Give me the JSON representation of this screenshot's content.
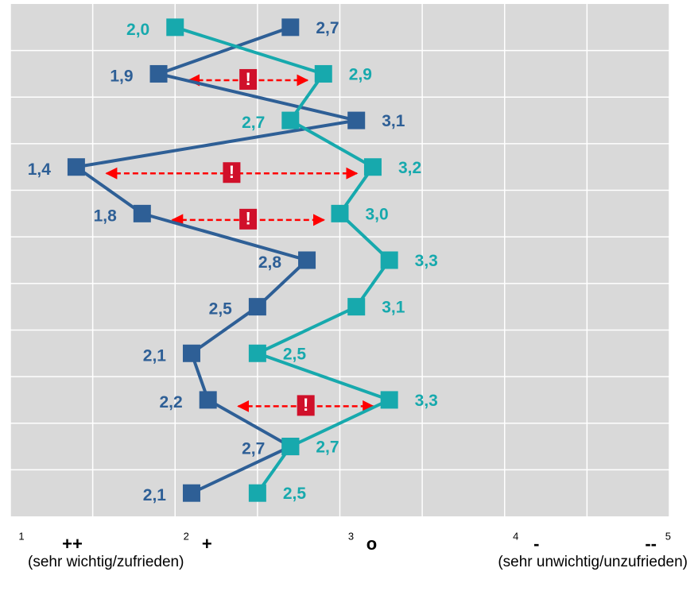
{
  "chart_data": {
    "type": "line",
    "categories": [
      null,
      null,
      null,
      null,
      null,
      null,
      null,
      null,
      null,
      null,
      null
    ],
    "series": [
      {
        "name": null,
        "color": "#2e5f96",
        "values": [
          2.7,
          1.9,
          3.1,
          1.4,
          1.8,
          2.8,
          2.5,
          2.1,
          2.2,
          2.7,
          2.1
        ],
        "value_labels": [
          "2,7",
          "1,9",
          "3,1",
          "1,4",
          "1,8",
          "2,8",
          "2,5",
          "2,1",
          "2,2",
          "2,7",
          "2,1"
        ]
      },
      {
        "name": null,
        "color": "#17a9ad",
        "values": [
          2.0,
          2.9,
          2.7,
          3.2,
          3.0,
          3.3,
          3.1,
          2.5,
          3.3,
          2.7,
          2.5
        ],
        "value_labels": [
          "2,0",
          "2,9",
          "2,7",
          "3,2",
          "3,0",
          "3,3",
          "3,1",
          "2,5",
          "3,3",
          "2,7",
          "2,5"
        ]
      }
    ],
    "xlim": [
      1,
      5
    ],
    "xticks": [
      1,
      2,
      3,
      4,
      5
    ],
    "xtick_symbols": [
      "++",
      "+",
      "o",
      "-",
      "--"
    ],
    "x_minor_ticks": [
      1.5,
      2.5,
      3.5,
      4.5
    ],
    "grid": true,
    "annotations": [
      {
        "row": 1,
        "label": "!"
      },
      {
        "row": 3,
        "label": "!"
      },
      {
        "row": 4,
        "label": "!"
      },
      {
        "row": 8,
        "label": "!"
      }
    ],
    "footnote_left": "(sehr wichtig/zufrieden)",
    "footnote_right": "(sehr unwichtig/unzufrieden)"
  }
}
